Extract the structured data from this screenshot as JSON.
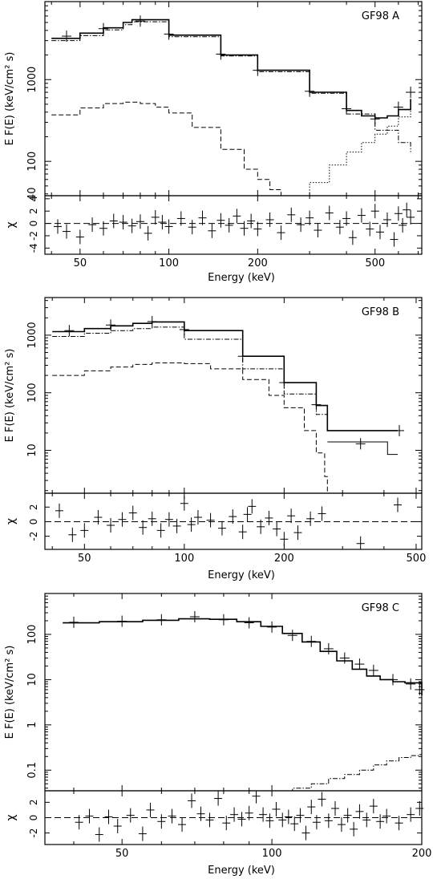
{
  "chart_data": [
    {
      "type": "line",
      "panel": "A",
      "title": "GF98 A",
      "xlabel": "Energy (keV)",
      "ylabel": "E F(E)  (keV/cm² s)",
      "resid_label": "χ",
      "x_scale": "log",
      "y_scale": "log",
      "xlim": [
        38,
        720
      ],
      "ylim": [
        38,
        9000
      ],
      "resid_ylim": [
        -5,
        4.5
      ],
      "x_ticks": [
        50,
        100,
        200,
        500
      ],
      "y_ticks": [
        40,
        100,
        1000
      ],
      "resid_ticks": [
        -4,
        -2,
        0,
        2,
        4
      ],
      "series": [
        {
          "role": "total",
          "style": "solid",
          "x": [
            40,
            50,
            60,
            70,
            75,
            100,
            150,
            200,
            300,
            400,
            450,
            500,
            550,
            600,
            660
          ],
          "y": [
            3200,
            3700,
            4300,
            5000,
            5400,
            3500,
            2000,
            1300,
            700,
            420,
            360,
            340,
            360,
            430,
            580
          ]
        },
        {
          "role": "cutoff-powerlaw",
          "style": "dash-dot",
          "x": [
            40,
            50,
            60,
            70,
            75,
            100,
            150,
            200,
            300,
            400,
            500,
            600,
            660
          ],
          "y": [
            3000,
            3450,
            4050,
            4700,
            5100,
            3350,
            1950,
            1250,
            680,
            380,
            240,
            170,
            130
          ]
        },
        {
          "role": "blackbody",
          "style": "dashed",
          "x": [
            40,
            50,
            60,
            70,
            80,
            90,
            100,
            120,
            150,
            180,
            200,
            220,
            240
          ],
          "y": [
            370,
            450,
            510,
            530,
            510,
            460,
            390,
            260,
            140,
            80,
            60,
            45,
            38
          ]
        },
        {
          "role": "rising-component",
          "style": "dotted",
          "x": [
            262,
            300,
            350,
            400,
            450,
            500,
            550,
            600,
            660
          ],
          "y": [
            38,
            55,
            90,
            130,
            170,
            215,
            270,
            350,
            480
          ]
        }
      ],
      "data_points": {
        "x": [
          45,
          60,
          80,
          100,
          150,
          200,
          300,
          400,
          500,
          600,
          660
        ],
        "y": [
          3400,
          4200,
          5200,
          3600,
          2050,
          1300,
          720,
          440,
          330,
          460,
          700
        ]
      },
      "residuals": {
        "x": [
          42,
          45,
          50,
          55,
          60,
          65,
          70,
          75,
          80,
          85,
          90,
          95,
          100,
          110,
          120,
          130,
          140,
          150,
          160,
          170,
          180,
          190,
          200,
          220,
          240,
          260,
          280,
          300,
          320,
          350,
          380,
          400,
          420,
          450,
          480,
          500,
          520,
          550,
          580,
          600,
          620,
          640,
          660
        ],
        "y": [
          -0.5,
          -1.3,
          -2.2,
          -0.2,
          -0.8,
          0.4,
          0.2,
          -0.4,
          0.3,
          -1.6,
          1.0,
          0.2,
          -0.5,
          0.8,
          -0.6,
          0.9,
          -1.2,
          0.5,
          -0.3,
          1.2,
          -0.8,
          0.4,
          -0.9,
          0.6,
          -1.5,
          1.4,
          -0.2,
          0.9,
          -1.1,
          1.7,
          -0.6,
          0.8,
          -2.3,
          1.3,
          -0.9,
          2.0,
          -1.4,
          0.6,
          -2.6,
          1.6,
          -0.3,
          2.2,
          1.0
        ]
      }
    },
    {
      "type": "line",
      "panel": "B",
      "title": "GF98 B",
      "xlabel": "Energy (keV)",
      "ylabel": "E F(E)  (keV/cm² s)",
      "resid_label": "χ",
      "x_scale": "log",
      "y_scale": "log",
      "xlim": [
        38,
        520
      ],
      "ylim": [
        1.8,
        4500
      ],
      "resid_ylim": [
        -3.8,
        3.9
      ],
      "x_ticks": [
        50,
        100,
        200,
        500
      ],
      "y_ticks": [
        10,
        100,
        1000
      ],
      "resid_ticks": [
        -2,
        0,
        2
      ],
      "series": [
        {
          "role": "total",
          "style": "solid",
          "x": [
            40,
            50,
            60,
            70,
            80,
            100,
            150,
            200,
            250,
            270,
            270,
            440
          ],
          "y": [
            1150,
            1300,
            1450,
            1600,
            1700,
            1200,
            430,
            150,
            60,
            45,
            22,
            22
          ]
        },
        {
          "role": "cutoff-powerlaw",
          "style": "dash-dot",
          "x": [
            40,
            50,
            60,
            70,
            80,
            100,
            150,
            200,
            250,
            270
          ],
          "y": [
            950,
            1080,
            1200,
            1300,
            1380,
            850,
            260,
            95,
            42,
            36
          ]
        },
        {
          "role": "blackbody",
          "style": "dashed",
          "x": [
            40,
            50,
            60,
            70,
            80,
            100,
            120,
            150,
            180,
            200,
            230,
            250,
            265,
            270
          ],
          "y": [
            200,
            240,
            280,
            310,
            330,
            320,
            260,
            170,
            90,
            55,
            22,
            9,
            3.5,
            1.8
          ]
        },
        {
          "role": "secondary",
          "style": "solid",
          "x": [
            270,
            410,
            410,
            440
          ],
          "y": [
            14,
            14,
            8.5,
            8.5
          ]
        }
      ],
      "data_points": {
        "x": [
          45,
          60,
          80,
          100,
          150,
          200,
          250,
          340,
          445
        ],
        "y": [
          1200,
          1500,
          1720,
          1250,
          430,
          150,
          62,
          13,
          22
        ]
      },
      "residuals": {
        "x": [
          42,
          46,
          50,
          55,
          60,
          65,
          70,
          75,
          80,
          85,
          90,
          95,
          100,
          105,
          110,
          120,
          130,
          140,
          150,
          155,
          160,
          170,
          180,
          190,
          200,
          210,
          220,
          240,
          260,
          340,
          440
        ],
        "y": [
          1.5,
          -1.8,
          -1.2,
          0.6,
          -0.5,
          0.3,
          1.2,
          -0.8,
          0.4,
          -1.2,
          0.3,
          -0.6,
          2.5,
          -0.4,
          0.6,
          0.2,
          -0.9,
          0.7,
          -1.4,
          1.0,
          2.1,
          -0.7,
          0.5,
          -1.0,
          -2.4,
          0.8,
          -1.5,
          0.4,
          1.1,
          -3.0,
          2.3
        ]
      }
    },
    {
      "type": "line",
      "panel": "C",
      "title": "GF98 C",
      "xlabel": "Energy (keV)",
      "ylabel": "E F(E)  (keV/cm² s)",
      "resid_label": "χ",
      "x_scale": "log",
      "y_scale": "log",
      "xlim": [
        35,
        200
      ],
      "ylim": [
        0.035,
        800
      ],
      "resid_ylim": [
        -3.5,
        3.5
      ],
      "x_ticks": [
        50,
        100,
        200
      ],
      "y_ticks": [
        0.1,
        1,
        10,
        100
      ],
      "resid_ticks": [
        -2,
        0,
        2
      ],
      "series": [
        {
          "role": "total",
          "style": "solid",
          "x": [
            38,
            45,
            55,
            65,
            75,
            85,
            95,
            105,
            115,
            125,
            135,
            145,
            155,
            165,
            175,
            185,
            200
          ],
          "y": [
            180,
            190,
            205,
            220,
            215,
            190,
            150,
            105,
            68,
            42,
            26,
            17,
            12,
            10,
            9,
            8.5,
            4.5
          ]
        },
        {
          "role": "secondary",
          "style": "dash-dot",
          "x": [
            104,
            110,
            120,
            130,
            140,
            150,
            160,
            170,
            180,
            190,
            198,
            200
          ],
          "y": [
            0.035,
            0.04,
            0.05,
            0.065,
            0.08,
            0.1,
            0.13,
            0.16,
            0.19,
            0.21,
            0.22,
            0.3
          ]
        }
      ],
      "data_points": {
        "x": [
          40,
          50,
          60,
          70,
          80,
          90,
          100,
          110,
          120,
          130,
          140,
          150,
          160,
          175,
          190,
          198
        ],
        "y": [
          185,
          195,
          210,
          245,
          210,
          180,
          145,
          95,
          70,
          48,
          30,
          22,
          16,
          10,
          8,
          6
        ]
      },
      "residuals": {
        "x": [
          41,
          43,
          45,
          47,
          49,
          52,
          55,
          57,
          60,
          63,
          66,
          69,
          72,
          75,
          78,
          81,
          84,
          87,
          90,
          93,
          96,
          99,
          102,
          105,
          108,
          111,
          114,
          117,
          120,
          123,
          126,
          130,
          134,
          138,
          142,
          146,
          150,
          155,
          160,
          165,
          170,
          180,
          190,
          198
        ],
        "y": [
          -0.6,
          0.2,
          -2.2,
          0.1,
          -1.1,
          0.3,
          -2.1,
          1.0,
          -0.5,
          0.2,
          -0.9,
          2.2,
          0.5,
          -0.3,
          2.5,
          -0.7,
          0.4,
          -0.2,
          0.6,
          2.8,
          0.4,
          -0.4,
          1.1,
          -0.3,
          0.1,
          -0.8,
          0.3,
          -2.0,
          1.4,
          -0.6,
          2.4,
          -0.4,
          1.2,
          -0.9,
          0.3,
          -1.5,
          0.8,
          -0.3,
          1.5,
          -0.5,
          0.2,
          -0.7,
          0.4,
          1.2
        ]
      }
    }
  ]
}
